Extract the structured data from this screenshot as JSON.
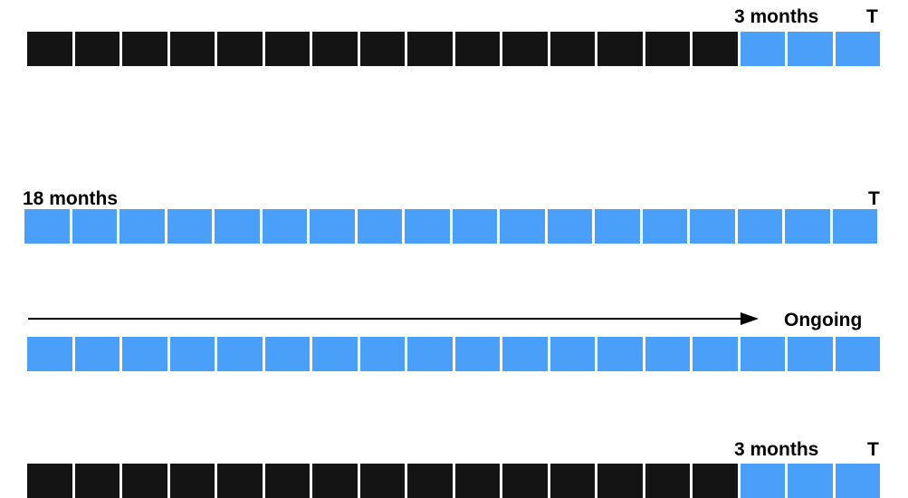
{
  "colors": {
    "dark": "#141414",
    "blue": "#4aa0f8",
    "arrow": "#000000"
  },
  "rows": [
    {
      "labels": {
        "duration": "3 months",
        "end": "T"
      },
      "blocks": [
        "dark",
        "dark",
        "dark",
        "dark",
        "dark",
        "dark",
        "dark",
        "dark",
        "dark",
        "dark",
        "dark",
        "dark",
        "dark",
        "dark",
        "dark",
        "blue",
        "blue",
        "blue"
      ]
    },
    {
      "labels": {
        "duration": "18 months",
        "end": "T"
      },
      "blocks": [
        "blue",
        "blue",
        "blue",
        "blue",
        "blue",
        "blue",
        "blue",
        "blue",
        "blue",
        "blue",
        "blue",
        "blue",
        "blue",
        "blue",
        "blue",
        "blue",
        "blue",
        "blue"
      ]
    },
    {
      "labels": {
        "duration": "Ongoing"
      },
      "blocks": [
        "blue",
        "blue",
        "blue",
        "blue",
        "blue",
        "blue",
        "blue",
        "blue",
        "blue",
        "blue",
        "blue",
        "blue",
        "blue",
        "blue",
        "blue",
        "blue",
        "blue",
        "blue"
      ]
    },
    {
      "labels": {
        "duration": "3 months",
        "end": "T"
      },
      "blocks": [
        "dark",
        "dark",
        "dark",
        "dark",
        "dark",
        "dark",
        "dark",
        "dark",
        "dark",
        "dark",
        "dark",
        "dark",
        "dark",
        "dark",
        "dark",
        "blue",
        "blue",
        "blue"
      ]
    }
  ]
}
